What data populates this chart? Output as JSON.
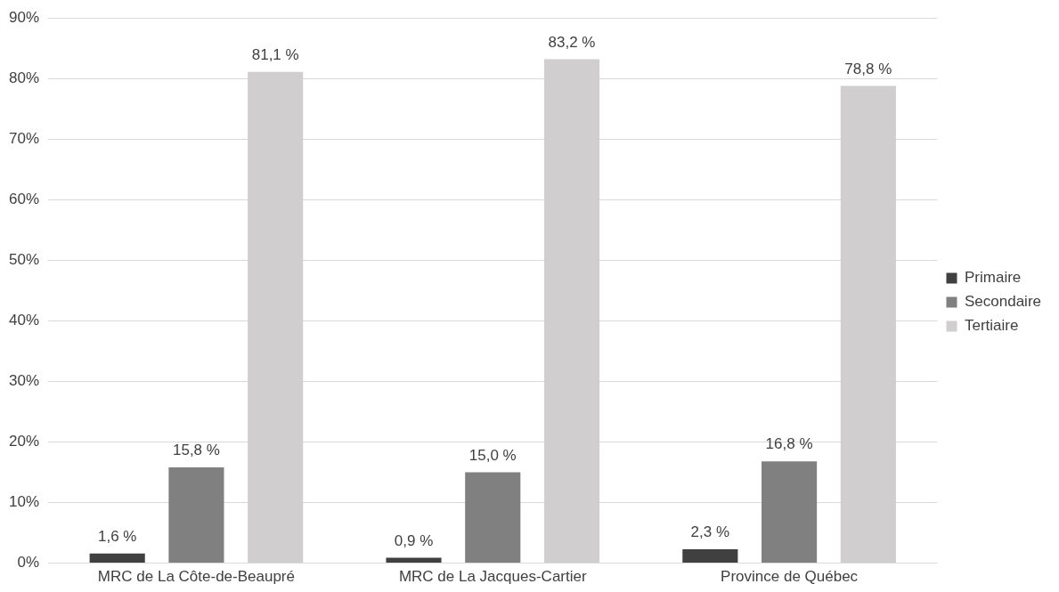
{
  "chart_data": {
    "type": "bar",
    "categories": [
      "MRC de La Côte-de-Beaupré",
      "MRC de La Jacques-Cartier",
      "Province de Québec"
    ],
    "series": [
      {
        "name": "Primaire",
        "color": "#404040",
        "values": [
          1.6,
          0.9,
          2.3
        ],
        "value_labels": [
          "1,6 %",
          "0,9 %",
          "2,3 %"
        ]
      },
      {
        "name": "Secondaire",
        "color": "#808080",
        "values": [
          15.8,
          15.0,
          16.8
        ],
        "value_labels": [
          "15,8 %",
          "15,0 %",
          "16,8 %"
        ]
      },
      {
        "name": "Tertiaire",
        "color": "#d0cece",
        "values": [
          81.1,
          83.2,
          78.8
        ],
        "value_labels": [
          "81,1 %",
          "83,2 %",
          "78,8 %"
        ]
      }
    ],
    "ylim": [
      0,
      90
    ],
    "yticks": [
      {
        "value": 0,
        "label": "0%"
      },
      {
        "value": 10,
        "label": "10%"
      },
      {
        "value": 20,
        "label": "20%"
      },
      {
        "value": 30,
        "label": "30%"
      },
      {
        "value": 40,
        "label": "40%"
      },
      {
        "value": 50,
        "label": "50%"
      },
      {
        "value": 60,
        "label": "60%"
      },
      {
        "value": 70,
        "label": "70%"
      },
      {
        "value": 80,
        "label": "80%"
      },
      {
        "value": 90,
        "label": "90%"
      }
    ],
    "grid": "y",
    "legend": "right"
  }
}
